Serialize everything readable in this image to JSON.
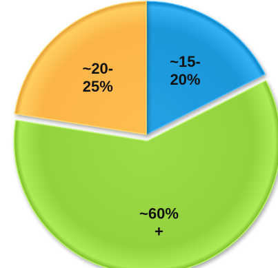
{
  "chart_data": {
    "type": "pie",
    "slices": [
      {
        "label_lines": [
          "~15-",
          "20%"
        ],
        "value": 17.5,
        "color": "#1a97da"
      },
      {
        "label_lines": [
          "~60%",
          "+"
        ],
        "value": 60,
        "color": "#93d13e"
      },
      {
        "label_lines": [
          "~20-",
          "25%"
        ],
        "value": 22.5,
        "color": "#fbb447"
      }
    ],
    "start": "12 o'clock",
    "direction": "clockwise",
    "legend": "none"
  }
}
